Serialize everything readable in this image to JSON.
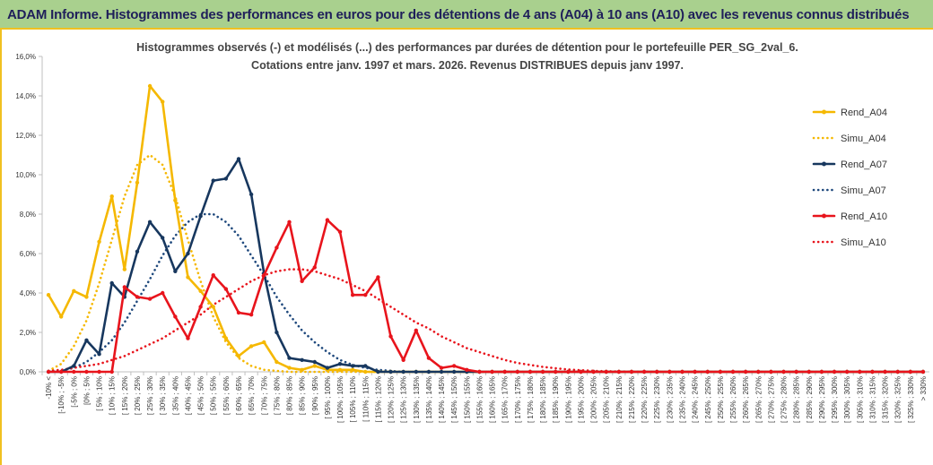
{
  "page": {
    "banner_title": "ADAM Informe. Histogrammes des performances en euros pour des détentions de 4 ans (A04) à 10 ans (A10) avec les revenus connus distribués"
  },
  "chart_data": {
    "type": "line",
    "title": [
      "Histogrammes observés (-) et modélisés (...) des performances par durées de détention pour le portefeuille PER_SG_2val_6.",
      "Cotations entre janv. 1997 et mars. 2026. Revenus DISTRIBUES depuis janv 1997."
    ],
    "ylim": [
      0,
      16
    ],
    "y_ticks": [
      0,
      2,
      4,
      6,
      8,
      10,
      12,
      14,
      16
    ],
    "y_tick_labels": [
      "0,0%",
      "2,0%",
      "4,0%",
      "6,0%",
      "8,0%",
      "10,0%",
      "12,0%",
      "14,0%",
      "16,0%"
    ],
    "legend_position": "right",
    "grid": false,
    "categories": [
      "-10% <",
      "[-10% ; -5%",
      "[-5% ; 0%",
      "[0% ; 5%",
      "[ 5% ; 10%",
      "[ 10% ; 15%",
      "[ 15% ; 20%",
      "[ 20% ; 25%",
      "[ 25% ; 30%",
      "[ 30% ; 35%",
      "[ 35% ; 40%",
      "[ 40% ; 45%",
      "[ 45% ; 50%",
      "[ 50% ; 55%",
      "[ 55% ; 60%",
      "[ 60% ; 65%",
      "[ 65% ; 70%",
      "[ 70% ; 75%",
      "[ 75% ; 80%",
      "[ 80% ; 85%",
      "[ 85% ; 90%",
      "[ 90% ; 95%",
      "[ 95% ; 100%",
      "[ 100% ; 105%",
      "[ 105% ; 110%",
      "[ 110% ; 115%",
      "[ 115% ; 120%",
      "[ 120% ; 125%",
      "[ 125% ; 130%",
      "[ 130% ; 135%",
      "[ 135% ; 140%",
      "[ 140% ; 145%",
      "[ 145% ; 150%",
      "[ 150% ; 155%",
      "[ 155% ; 160%",
      "[ 160% ; 165%",
      "[ 165% ; 170%",
      "[ 170% ; 175%",
      "[ 175% ; 180%",
      "[ 180% ; 185%",
      "[ 185% ; 190%",
      "[ 190% ; 195%",
      "[ 195% ; 200%",
      "[ 200% ; 205%",
      "[ 205% ; 210%",
      "[ 210% ; 215%",
      "[ 215% ; 220%",
      "[ 220% ; 225%",
      "[ 225% ; 230%",
      "[ 230% ; 235%",
      "[ 235% ; 240%",
      "[ 240% ; 245%",
      "[ 245% ; 250%",
      "[ 250% ; 255%",
      "[ 255% ; 260%",
      "[ 260% ; 265%",
      "[ 265% ; 270%",
      "[ 270% ; 275%",
      "[ 275% ; 280%",
      "[ 280% ; 285%",
      "[ 285% ; 290%",
      "[ 290% ; 295%",
      "[ 295% ; 300%",
      "[ 300% ; 305%",
      "[ 305% ; 310%",
      "[ 310% ; 315%",
      "[ 315% ; 320%",
      "[ 320% ; 325%",
      "[ 325% ; 330%",
      "> 330%"
    ],
    "series": [
      {
        "name": "Rend_A04",
        "color": "#f5b800",
        "style": "solid",
        "markers": true,
        "values": [
          3.9,
          2.8,
          4.1,
          3.8,
          6.6,
          8.9,
          5.2,
          9.6,
          14.5,
          13.7,
          8.7,
          4.8,
          4.1,
          3.3,
          1.7,
          0.8,
          1.3,
          1.5,
          0.5,
          0.2,
          0.1,
          0.3,
          0.1,
          0.1,
          0.1,
          0,
          0,
          0,
          0,
          0,
          0,
          0,
          0,
          0,
          0,
          0,
          0,
          0,
          0,
          0,
          0,
          0,
          0,
          0,
          0,
          0,
          0,
          0,
          0,
          0,
          0,
          0,
          0,
          0,
          0,
          0,
          0,
          0,
          0,
          0,
          0,
          0,
          0,
          0,
          0,
          0,
          0,
          0,
          0,
          0
        ]
      },
      {
        "name": "Simu_A04",
        "color": "#f5b800",
        "style": "dotted",
        "markers": false,
        "values": [
          0.05,
          0.4,
          1.3,
          2.6,
          4.5,
          6.7,
          8.9,
          10.5,
          11.0,
          10.5,
          8.9,
          6.7,
          4.6,
          2.8,
          1.5,
          0.7,
          0.3,
          0.1,
          0.05,
          0,
          0,
          0,
          0,
          0,
          0,
          0,
          0,
          0,
          0,
          0,
          0,
          0,
          0,
          0,
          0,
          0,
          0,
          0,
          0,
          0,
          0,
          0,
          0,
          0,
          0,
          0,
          0,
          0,
          0,
          0,
          0,
          0,
          0,
          0,
          0,
          0,
          0,
          0,
          0,
          0,
          0,
          0,
          0,
          0,
          0,
          0,
          0,
          0,
          0,
          0
        ]
      },
      {
        "name": "Rend_A07",
        "color": "#17375e",
        "style": "solid",
        "markers": true,
        "values": [
          0,
          0,
          0.3,
          1.6,
          0.9,
          4.5,
          3.8,
          6.1,
          7.6,
          6.8,
          5.1,
          6.0,
          7.9,
          9.7,
          9.8,
          10.8,
          9.0,
          5.0,
          2.0,
          0.7,
          0.6,
          0.5,
          0.2,
          0.4,
          0.3,
          0.3,
          0,
          0,
          0,
          0,
          0,
          0,
          0,
          0,
          0,
          0,
          0,
          0,
          0,
          0,
          0,
          0,
          0,
          0,
          0,
          0,
          0,
          0,
          0,
          0,
          0,
          0,
          0,
          0,
          0,
          0,
          0,
          0,
          0,
          0,
          0,
          0,
          0,
          0,
          0,
          0,
          0,
          0,
          0,
          0
        ]
      },
      {
        "name": "Simu_A07",
        "color": "#1f497d",
        "style": "dotted",
        "markers": false,
        "values": [
          0,
          0.05,
          0.2,
          0.5,
          1.0,
          1.6,
          2.5,
          3.6,
          4.7,
          5.9,
          6.9,
          7.6,
          8.0,
          8.0,
          7.6,
          6.9,
          5.9,
          4.9,
          3.8,
          2.9,
          2.1,
          1.5,
          1.0,
          0.6,
          0.35,
          0.2,
          0.1,
          0.05,
          0,
          0,
          0,
          0,
          0,
          0,
          0,
          0,
          0,
          0,
          0,
          0,
          0,
          0,
          0,
          0,
          0,
          0,
          0,
          0,
          0,
          0,
          0,
          0,
          0,
          0,
          0,
          0,
          0,
          0,
          0,
          0,
          0,
          0,
          0,
          0,
          0,
          0,
          0,
          0,
          0,
          0
        ]
      },
      {
        "name": "Rend_A10",
        "color": "#e8141c",
        "style": "solid",
        "markers": true,
        "values": [
          0,
          0,
          0,
          0,
          0,
          0,
          4.3,
          3.8,
          3.7,
          4.0,
          2.8,
          1.7,
          3.3,
          4.9,
          4.2,
          3.0,
          2.9,
          4.9,
          6.3,
          7.6,
          4.6,
          5.3,
          7.7,
          7.1,
          3.9,
          3.9,
          4.8,
          1.8,
          0.6,
          2.1,
          0.7,
          0.2,
          0.3,
          0.1,
          0,
          0,
          0,
          0,
          0,
          0,
          0,
          0,
          0,
          0,
          0,
          0,
          0,
          0,
          0,
          0,
          0,
          0,
          0,
          0,
          0,
          0,
          0,
          0,
          0,
          0,
          0,
          0,
          0,
          0,
          0,
          0,
          0,
          0,
          0,
          0
        ]
      },
      {
        "name": "Simu_A10",
        "color": "#e8141c",
        "style": "dotted",
        "markers": false,
        "values": [
          0.05,
          0.1,
          0.2,
          0.3,
          0.4,
          0.6,
          0.8,
          1.1,
          1.4,
          1.7,
          2.1,
          2.5,
          2.9,
          3.4,
          3.8,
          4.2,
          4.6,
          4.9,
          5.1,
          5.2,
          5.2,
          5.1,
          4.9,
          4.7,
          4.4,
          4.1,
          3.7,
          3.3,
          2.9,
          2.5,
          2.2,
          1.8,
          1.5,
          1.2,
          1.0,
          0.8,
          0.6,
          0.45,
          0.35,
          0.25,
          0.18,
          0.12,
          0.08,
          0.05,
          0.03,
          0.02,
          0.01,
          0,
          0,
          0,
          0,
          0,
          0,
          0,
          0,
          0,
          0,
          0,
          0,
          0,
          0,
          0,
          0,
          0,
          0,
          0,
          0,
          0,
          0,
          0
        ]
      }
    ]
  }
}
